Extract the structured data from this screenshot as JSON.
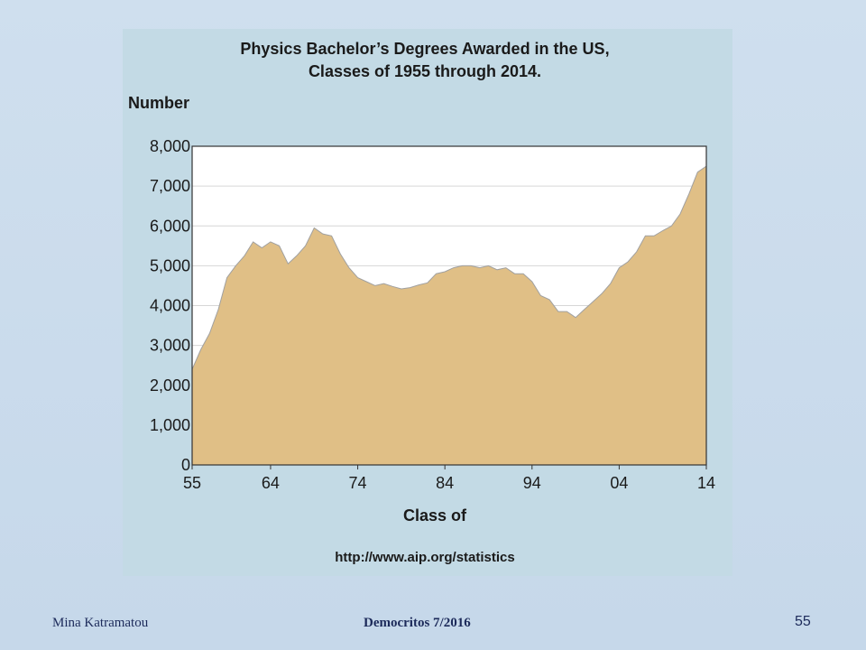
{
  "chart_data": {
    "type": "area",
    "title": [
      "Physics Bachelor’s Degrees Awarded in the US,",
      "Classes of 1955 through 2014."
    ],
    "ylabel": "Number",
    "xlabel": "Class of",
    "source": "http://www.aip.org/statistics",
    "ylim": [
      0,
      8000
    ],
    "xlim": [
      1955,
      2014
    ],
    "yticks": [
      0,
      1000,
      2000,
      3000,
      4000,
      5000,
      6000,
      7000,
      8000
    ],
    "ytick_labels": [
      "0",
      "1,000",
      "2,000",
      "3,000",
      "4,000",
      "5,000",
      "6,000",
      "7,000",
      "8,000"
    ],
    "xticks": [
      1955,
      1964,
      1974,
      1984,
      1994,
      2004,
      2014
    ],
    "xtick_labels": [
      "55",
      "64",
      "74",
      "84",
      "94",
      "04",
      "14"
    ],
    "grid": true,
    "fill_color": "#e0bf86",
    "line_color": "#a0a0a0",
    "plot_background": "#ffffff",
    "series": [
      {
        "x": [
          1955,
          1956,
          1957,
          1958,
          1959,
          1960,
          1961,
          1962,
          1963,
          1964,
          1965,
          1966,
          1967,
          1968,
          1969,
          1970,
          1971,
          1972,
          1973,
          1974,
          1975,
          1976,
          1977,
          1978,
          1979,
          1980,
          1981,
          1982,
          1983,
          1984,
          1985,
          1986,
          1987,
          1988,
          1989,
          1990,
          1991,
          1992,
          1993,
          1994,
          1995,
          1996,
          1997,
          1998,
          1999,
          2000,
          2001,
          2002,
          2003,
          2004,
          2005,
          2006,
          2007,
          2008,
          2009,
          2010,
          2011,
          2012,
          2013,
          2014
        ],
        "values": [
          2400,
          2900,
          3300,
          3900,
          4700,
          5000,
          5250,
          5600,
          5450,
          5600,
          5500,
          5050,
          5250,
          5500,
          5950,
          5800,
          5750,
          5300,
          4950,
          4700,
          4600,
          4500,
          4550,
          4480,
          4420,
          4450,
          4520,
          4570,
          4800,
          4850,
          4950,
          5000,
          5000,
          4950,
          5000,
          4900,
          4950,
          4800,
          4800,
          4600,
          4250,
          4150,
          3850,
          3850,
          3700,
          3900,
          4100,
          4300,
          4550,
          4950,
          5100,
          5350,
          5750,
          5750,
          5880,
          6000,
          6300,
          6800,
          7350,
          7500
        ]
      }
    ]
  },
  "footer": {
    "author": "Mina Katramatou",
    "event": "Democritos  7/2016",
    "page_number": "55"
  }
}
